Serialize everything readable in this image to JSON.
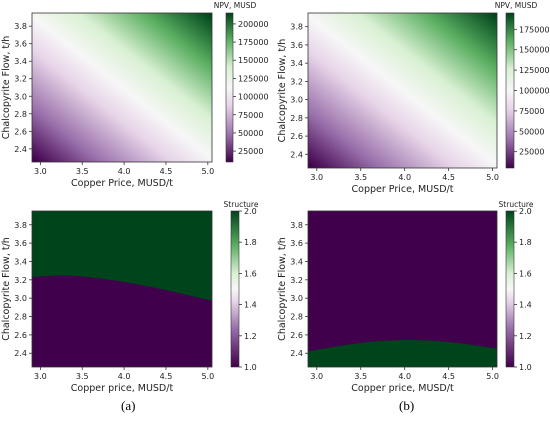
{
  "captions": {
    "a": "(a)",
    "b": "(b)"
  },
  "colors": {
    "purple": "#40004b",
    "midpurple": "#9970ab",
    "lightpurple": "#e7d4e8",
    "white": "#f7f7f7",
    "lightgreen": "#d9f0d3",
    "midgreen": "#5aae61",
    "green": "#00441b",
    "axis": "#333333"
  },
  "chart_data": [
    {
      "id": "a_top",
      "type": "heatmap",
      "title": "",
      "xlabel": "Copper Price, MUSD/t",
      "ylabel": "Chalcopyrite Flow, t/h",
      "colorbar_label": "NPV, MUSD",
      "xlim": [
        2.9,
        5.05
      ],
      "ylim": [
        2.25,
        3.95
      ],
      "xticks": [
        3.0,
        3.5,
        4.0,
        4.5,
        5.0
      ],
      "yticks": [
        2.4,
        2.6,
        2.8,
        3.0,
        3.2,
        3.4,
        3.6,
        3.8
      ],
      "xtick_labels": [
        "3.0",
        "3.5",
        "4.0",
        "4.5",
        "5.0"
      ],
      "ytick_labels": [
        "2.4",
        "2.6",
        "2.8",
        "3.0",
        "3.2",
        "3.4",
        "3.6",
        "3.8"
      ],
      "clim": [
        10000,
        215000
      ],
      "cticks": [
        25000,
        50000,
        75000,
        100000,
        125000,
        150000,
        175000,
        200000
      ],
      "ctick_labels": [
        "25000",
        "50000",
        "75000",
        "100000",
        "125000",
        "150000",
        "175000",
        "200000"
      ],
      "value_model": {
        "min": 10000,
        "max": 215000,
        "ramp": "linear_diagonal"
      }
    },
    {
      "id": "b_top",
      "type": "heatmap",
      "title": "",
      "xlabel": "Copper Price, MUSD/t",
      "ylabel": "Chalcopyrite Flow, t/h",
      "colorbar_label": "NPV, MUSD",
      "xlim": [
        2.9,
        5.05
      ],
      "ylim": [
        2.25,
        3.95
      ],
      "xticks": [
        3.0,
        3.5,
        4.0,
        4.5,
        5.0
      ],
      "yticks": [
        2.4,
        2.6,
        2.8,
        3.0,
        3.2,
        3.4,
        3.6,
        3.8
      ],
      "xtick_labels": [
        "3.0",
        "3.5",
        "4.0",
        "4.5",
        "5.0"
      ],
      "ytick_labels": [
        "2.4",
        "2.6",
        "2.8",
        "3.0",
        "3.2",
        "3.4",
        "3.6",
        "3.8"
      ],
      "clim": [
        5000,
        195000
      ],
      "cticks": [
        25000,
        50000,
        75000,
        100000,
        125000,
        150000,
        175000
      ],
      "ctick_labels": [
        "25000",
        "50000",
        "75000",
        "100000",
        "125000",
        "150000",
        "175000"
      ],
      "value_model": {
        "min": 5000,
        "max": 195000,
        "ramp": "linear_diagonal"
      }
    },
    {
      "id": "a_bottom",
      "type": "heatmap",
      "title": "",
      "xlabel": "Copper price, MUSD/t",
      "ylabel": "Chalcopyrite Flow, t/h",
      "colorbar_label": "Structure",
      "xlim": [
        2.9,
        5.05
      ],
      "ylim": [
        2.25,
        3.95
      ],
      "xticks": [
        3.0,
        3.5,
        4.0,
        4.5,
        5.0
      ],
      "yticks": [
        2.4,
        2.6,
        2.8,
        3.0,
        3.2,
        3.4,
        3.6,
        3.8
      ],
      "xtick_labels": [
        "3.0",
        "3.5",
        "4.0",
        "4.5",
        "5.0"
      ],
      "ytick_labels": [
        "2.4",
        "2.6",
        "2.8",
        "3.0",
        "3.2",
        "3.4",
        "3.6",
        "3.8"
      ],
      "clim": [
        1.0,
        2.0
      ],
      "cticks": [
        1.0,
        1.2,
        1.4,
        1.6,
        1.8,
        2.0
      ],
      "ctick_labels": [
        "1.0",
        "1.2",
        "1.4",
        "1.6",
        "1.8",
        "2.0"
      ],
      "regions": {
        "above_boundary": 2.0,
        "below_boundary": 1.0
      },
      "boundary": {
        "x": [
          2.9,
          3.25,
          3.5,
          4.0,
          4.5,
          5.05
        ],
        "y": [
          3.23,
          3.25,
          3.24,
          3.18,
          3.09,
          2.97
        ]
      }
    },
    {
      "id": "b_bottom",
      "type": "heatmap",
      "title": "",
      "xlabel": "Copper price, MUSD/t",
      "ylabel": "Chalcopyrite Flow, t/h",
      "colorbar_label": "Structure",
      "xlim": [
        2.9,
        5.05
      ],
      "ylim": [
        2.25,
        3.95
      ],
      "xticks": [
        3.0,
        3.5,
        4.0,
        4.5,
        5.0
      ],
      "yticks": [
        2.4,
        2.6,
        2.8,
        3.0,
        3.2,
        3.4,
        3.6,
        3.8
      ],
      "xtick_labels": [
        "3.0",
        "3.5",
        "4.0",
        "4.5",
        "5.0"
      ],
      "ytick_labels": [
        "2.4",
        "2.6",
        "2.8",
        "3.0",
        "3.2",
        "3.4",
        "3.6",
        "3.8"
      ],
      "clim": [
        1.0,
        2.0
      ],
      "cticks": [
        1.0,
        1.2,
        1.4,
        1.6,
        1.8,
        2.0
      ],
      "ctick_labels": [
        "1.0",
        "1.2",
        "1.4",
        "1.6",
        "1.8",
        "2.0"
      ],
      "regions": {
        "above_boundary": 1.0,
        "below_boundary": 2.0
      },
      "boundary": {
        "x": [
          2.9,
          3.5,
          4.0,
          4.5,
          5.05
        ],
        "y": [
          2.42,
          2.52,
          2.55,
          2.53,
          2.45
        ]
      }
    }
  ]
}
